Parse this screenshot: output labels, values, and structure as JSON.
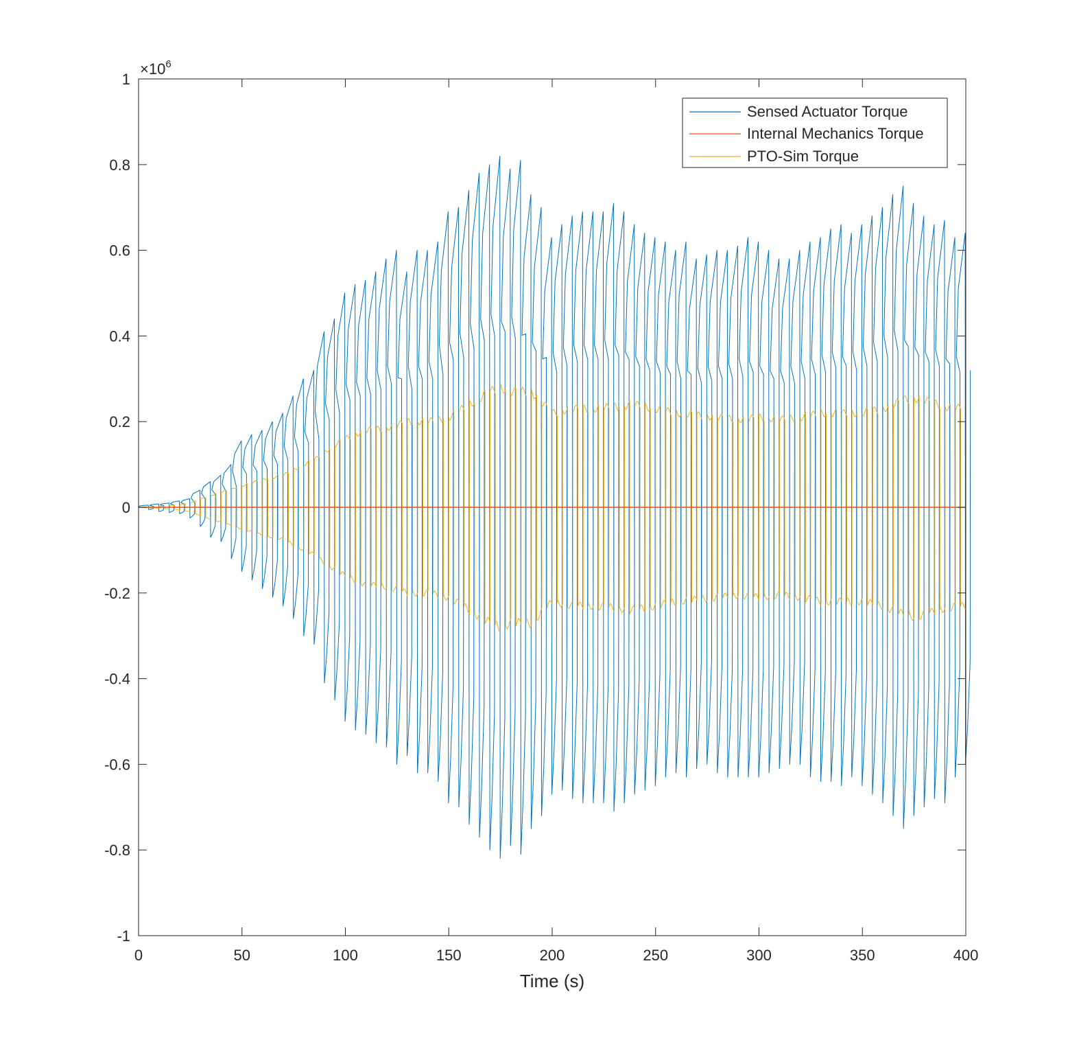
{
  "chart_data": {
    "type": "line",
    "title": "",
    "xlabel": "Time (s)",
    "ylabel": "",
    "xlim": [
      0,
      400
    ],
    "ylim": [
      -1,
      1
    ],
    "y_exponent_label": {
      "base": "×10",
      "exponent": "6"
    },
    "x_ticks": [
      "0",
      "50",
      "100",
      "150",
      "200",
      "250",
      "300",
      "350",
      "400"
    ],
    "y_ticks": [
      "1",
      "0.8",
      "0.6",
      "0.4",
      "0.2",
      "0",
      "-0.2",
      "-0.4",
      "-0.6",
      "-0.8",
      "-1"
    ],
    "grid": false,
    "legend_position": "top-right",
    "series": [
      {
        "name": "Sensed Actuator Torque",
        "color": "#0072BD",
        "peaks": [
          [
            5,
            0.005
          ],
          [
            10,
            0.008
          ],
          [
            15,
            0.01
          ],
          [
            20,
            0.015
          ],
          [
            25,
            0.02
          ],
          [
            30,
            0.04
          ],
          [
            35,
            0.06
          ],
          [
            40,
            0.075
          ],
          [
            45,
            0.1
          ],
          [
            50,
            0.155
          ],
          [
            55,
            0.17
          ],
          [
            60,
            0.18
          ],
          [
            65,
            0.2
          ],
          [
            70,
            0.22
          ],
          [
            75,
            0.26
          ],
          [
            80,
            0.3
          ],
          [
            85,
            0.32
          ],
          [
            90,
            0.41
          ],
          [
            95,
            0.44
          ],
          [
            100,
            0.5
          ],
          [
            105,
            0.52
          ],
          [
            110,
            0.53
          ],
          [
            115,
            0.55
          ],
          [
            120,
            0.58
          ],
          [
            125,
            0.6
          ],
          [
            130,
            0.55
          ],
          [
            135,
            0.6
          ],
          [
            140,
            0.6
          ],
          [
            145,
            0.62
          ],
          [
            150,
            0.69
          ],
          [
            155,
            0.7
          ],
          [
            160,
            0.74
          ],
          [
            165,
            0.78
          ],
          [
            170,
            0.8
          ],
          [
            175,
            0.82
          ],
          [
            180,
            0.79
          ],
          [
            185,
            0.81
          ],
          [
            190,
            0.73
          ],
          [
            195,
            0.7
          ],
          [
            200,
            0.63
          ],
          [
            205,
            0.66
          ],
          [
            210,
            0.68
          ],
          [
            215,
            0.69
          ],
          [
            220,
            0.69
          ],
          [
            225,
            0.69
          ],
          [
            230,
            0.71
          ],
          [
            235,
            0.69
          ],
          [
            240,
            0.66
          ],
          [
            245,
            0.64
          ],
          [
            250,
            0.63
          ],
          [
            255,
            0.62
          ],
          [
            260,
            0.6
          ],
          [
            265,
            0.62
          ],
          [
            270,
            0.58
          ],
          [
            275,
            0.59
          ],
          [
            280,
            0.6
          ],
          [
            285,
            0.6
          ],
          [
            290,
            0.61
          ],
          [
            295,
            0.63
          ],
          [
            300,
            0.62
          ],
          [
            305,
            0.6
          ],
          [
            310,
            0.58
          ],
          [
            315,
            0.58
          ],
          [
            320,
            0.6
          ],
          [
            325,
            0.62
          ],
          [
            330,
            0.63
          ],
          [
            335,
            0.65
          ],
          [
            340,
            0.66
          ],
          [
            345,
            0.64
          ],
          [
            350,
            0.66
          ],
          [
            355,
            0.68
          ],
          [
            360,
            0.7
          ],
          [
            365,
            0.73
          ],
          [
            370,
            0.75
          ],
          [
            375,
            0.71
          ],
          [
            380,
            0.68
          ],
          [
            385,
            0.66
          ],
          [
            390,
            0.67
          ],
          [
            395,
            0.63
          ],
          [
            400,
            0.64
          ]
        ],
        "troughs": [
          [
            5,
            -0.005
          ],
          [
            10,
            -0.01
          ],
          [
            15,
            -0.012
          ],
          [
            20,
            -0.015
          ],
          [
            25,
            -0.025
          ],
          [
            30,
            -0.045
          ],
          [
            35,
            -0.07
          ],
          [
            40,
            -0.08
          ],
          [
            45,
            -0.12
          ],
          [
            50,
            -0.15
          ],
          [
            55,
            -0.17
          ],
          [
            60,
            -0.19
          ],
          [
            65,
            -0.21
          ],
          [
            70,
            -0.23
          ],
          [
            75,
            -0.26
          ],
          [
            80,
            -0.3
          ],
          [
            85,
            -0.32
          ],
          [
            90,
            -0.41
          ],
          [
            95,
            -0.45
          ],
          [
            100,
            -0.5
          ],
          [
            105,
            -0.52
          ],
          [
            110,
            -0.53
          ],
          [
            115,
            -0.55
          ],
          [
            120,
            -0.56
          ],
          [
            125,
            -0.6
          ],
          [
            130,
            -0.58
          ],
          [
            135,
            -0.62
          ],
          [
            140,
            -0.62
          ],
          [
            145,
            -0.64
          ],
          [
            150,
            -0.69
          ],
          [
            155,
            -0.7
          ],
          [
            160,
            -0.74
          ],
          [
            165,
            -0.77
          ],
          [
            170,
            -0.8
          ],
          [
            175,
            -0.82
          ],
          [
            180,
            -0.79
          ],
          [
            185,
            -0.81
          ],
          [
            190,
            -0.75
          ],
          [
            195,
            -0.72
          ],
          [
            200,
            -0.67
          ],
          [
            205,
            -0.66
          ],
          [
            210,
            -0.68
          ],
          [
            215,
            -0.69
          ],
          [
            220,
            -0.69
          ],
          [
            225,
            -0.69
          ],
          [
            230,
            -0.71
          ],
          [
            235,
            -0.69
          ],
          [
            240,
            -0.67
          ],
          [
            245,
            -0.66
          ],
          [
            250,
            -0.65
          ],
          [
            255,
            -0.63
          ],
          [
            260,
            -0.62
          ],
          [
            265,
            -0.63
          ],
          [
            270,
            -0.61
          ],
          [
            275,
            -0.6
          ],
          [
            280,
            -0.62
          ],
          [
            285,
            -0.63
          ],
          [
            290,
            -0.63
          ],
          [
            295,
            -0.63
          ],
          [
            300,
            -0.63
          ],
          [
            305,
            -0.62
          ],
          [
            310,
            -0.61
          ],
          [
            315,
            -0.6
          ],
          [
            320,
            -0.6
          ],
          [
            325,
            -0.63
          ],
          [
            330,
            -0.64
          ],
          [
            335,
            -0.64
          ],
          [
            340,
            -0.65
          ],
          [
            345,
            -0.63
          ],
          [
            350,
            -0.65
          ],
          [
            355,
            -0.67
          ],
          [
            360,
            -0.69
          ],
          [
            365,
            -0.72
          ],
          [
            370,
            -0.75
          ],
          [
            375,
            -0.72
          ],
          [
            380,
            -0.7
          ],
          [
            385,
            -0.68
          ],
          [
            390,
            -0.69
          ],
          [
            395,
            -0.63
          ],
          [
            400,
            -0.6
          ]
        ]
      },
      {
        "name": "Internal Mechanics Torque",
        "color": "#D95319",
        "constant_value": 0
      },
      {
        "name": "PTO-Sim Torque",
        "color": "#EDB120",
        "envelope": [
          [
            0,
            0
          ],
          [
            10,
            0.002
          ],
          [
            20,
            0.006
          ],
          [
            25,
            0.01
          ],
          [
            30,
            0.02
          ],
          [
            40,
            0.035
          ],
          [
            50,
            0.05
          ],
          [
            60,
            0.065
          ],
          [
            70,
            0.075
          ],
          [
            80,
            0.1
          ],
          [
            85,
            0.11
          ],
          [
            90,
            0.13
          ],
          [
            95,
            0.145
          ],
          [
            100,
            0.16
          ],
          [
            110,
            0.18
          ],
          [
            120,
            0.185
          ],
          [
            130,
            0.2
          ],
          [
            140,
            0.2
          ],
          [
            150,
            0.21
          ],
          [
            160,
            0.24
          ],
          [
            170,
            0.27
          ],
          [
            175,
            0.28
          ],
          [
            180,
            0.27
          ],
          [
            190,
            0.27
          ],
          [
            200,
            0.22
          ],
          [
            210,
            0.23
          ],
          [
            220,
            0.23
          ],
          [
            230,
            0.235
          ],
          [
            240,
            0.24
          ],
          [
            250,
            0.23
          ],
          [
            260,
            0.22
          ],
          [
            270,
            0.215
          ],
          [
            280,
            0.21
          ],
          [
            290,
            0.205
          ],
          [
            300,
            0.21
          ],
          [
            310,
            0.205
          ],
          [
            320,
            0.21
          ],
          [
            330,
            0.22
          ],
          [
            340,
            0.22
          ],
          [
            350,
            0.22
          ],
          [
            360,
            0.23
          ],
          [
            370,
            0.25
          ],
          [
            375,
            0.255
          ],
          [
            380,
            0.25
          ],
          [
            390,
            0.235
          ],
          [
            400,
            0.23
          ]
        ]
      }
    ]
  }
}
